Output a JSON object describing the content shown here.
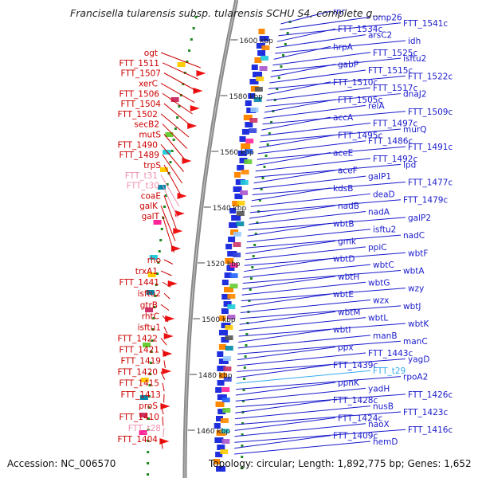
{
  "title": "Francisella tularensis subsp. tularensis SCHU S4, complete g...",
  "footer": {
    "accession": "Accession: NC_006570",
    "summary": "Topology: circular; Length: 1,892,775 bp; Genes: 1,652"
  },
  "colors": {
    "reverse_label": "#cc0000",
    "forward_label": "#1a1acc",
    "rna_reverse": "#f090b0",
    "rna_forward": "#33aaee",
    "backbone": "#8a8a8a",
    "tick": "#1f8a1f"
  },
  "ticks": [
    "1600 kbp",
    "1580 kbp",
    "1560 kbp",
    "1540 kbp",
    "1520 kbp",
    "1500 kbp",
    "1480 kbp",
    "1460 kbp"
  ],
  "left_labels": [
    {
      "text": "ogt",
      "type": "gene"
    },
    {
      "text": "FTT_1511",
      "type": "gene"
    },
    {
      "text": "FTT_1507",
      "type": "gene"
    },
    {
      "text": "xerC",
      "type": "gene"
    },
    {
      "text": "FTT_1506",
      "type": "gene"
    },
    {
      "text": "FTT_1504",
      "type": "gene"
    },
    {
      "text": "FTT_1502",
      "type": "gene"
    },
    {
      "text": "secB2",
      "type": "gene"
    },
    {
      "text": "mutS",
      "type": "gene"
    },
    {
      "text": "FTT_1490",
      "type": "gene"
    },
    {
      "text": "FTT_1489",
      "type": "gene"
    },
    {
      "text": "trpS",
      "type": "gene"
    },
    {
      "text": "FTT_t31",
      "type": "rna"
    },
    {
      "text": "FTT_t30",
      "type": "rna"
    },
    {
      "text": "coaE",
      "type": "gene"
    },
    {
      "text": "galK",
      "type": "gene"
    },
    {
      "text": "galT",
      "type": "gene"
    },
    {
      "text": "rho",
      "type": "gene"
    },
    {
      "text": "trxA1",
      "type": "gene"
    },
    {
      "text": "FTT_1441",
      "type": "gene"
    },
    {
      "text": "isftu2",
      "type": "gene"
    },
    {
      "text": "gtrB",
      "type": "gene"
    },
    {
      "text": "rhtC",
      "type": "gene"
    },
    {
      "text": "isftu1",
      "type": "gene"
    },
    {
      "text": "FTT_1422",
      "type": "gene"
    },
    {
      "text": "FTT_1421",
      "type": "gene"
    },
    {
      "text": "FTT_1419",
      "type": "gene"
    },
    {
      "text": "FTT_1420",
      "type": "gene"
    },
    {
      "text": "FTT_1415",
      "type": "gene"
    },
    {
      "text": "FTT_1413",
      "type": "gene"
    },
    {
      "text": "proS",
      "type": "gene"
    },
    {
      "text": "FTT_1410",
      "type": "gene"
    },
    {
      "text": "FTT_t28",
      "type": "rna"
    },
    {
      "text": "FTT_1404",
      "type": "gene"
    }
  ],
  "right_labels": [
    {
      "text": "rnr",
      "type": "gene"
    },
    {
      "text": "omp26",
      "type": "gene"
    },
    {
      "text": "FTT_1541c",
      "type": "gene"
    },
    {
      "text": "FTT_1534c",
      "type": "gene"
    },
    {
      "text": "arsC2",
      "type": "gene"
    },
    {
      "text": "idh",
      "type": "gene"
    },
    {
      "text": "hrpA",
      "type": "gene"
    },
    {
      "text": "FTT_1525c",
      "type": "gene"
    },
    {
      "text": "isftu2",
      "type": "gene"
    },
    {
      "text": "gabP",
      "type": "gene"
    },
    {
      "text": "FTT_1515c",
      "type": "gene"
    },
    {
      "text": "FTT_1522c",
      "type": "gene"
    },
    {
      "text": "FTT_1510c",
      "type": "gene"
    },
    {
      "text": "FTT_1517c",
      "type": "gene"
    },
    {
      "text": "dnaJ2",
      "type": "gene"
    },
    {
      "text": "FTT_1505c",
      "type": "gene"
    },
    {
      "text": "relA",
      "type": "gene"
    },
    {
      "text": "FTT_1509c",
      "type": "gene"
    },
    {
      "text": "accA",
      "type": "gene"
    },
    {
      "text": "FTT_1497c",
      "type": "gene"
    },
    {
      "text": "murQ",
      "type": "gene"
    },
    {
      "text": "FTT_1495c",
      "type": "gene"
    },
    {
      "text": "FTT_1486c",
      "type": "gene"
    },
    {
      "text": "FTT_1491c",
      "type": "gene"
    },
    {
      "text": "aceE",
      "type": "gene"
    },
    {
      "text": "FTT_1492c",
      "type": "gene"
    },
    {
      "text": "lpd",
      "type": "gene"
    },
    {
      "text": "aceF",
      "type": "gene"
    },
    {
      "text": "galP1",
      "type": "gene"
    },
    {
      "text": "FTT_1477c",
      "type": "gene"
    },
    {
      "text": "kdsB",
      "type": "gene"
    },
    {
      "text": "deaD",
      "type": "gene"
    },
    {
      "text": "FTT_1479c",
      "type": "gene"
    },
    {
      "text": "nadB",
      "type": "gene"
    },
    {
      "text": "nadA",
      "type": "gene"
    },
    {
      "text": "galP2",
      "type": "gene"
    },
    {
      "text": "wbtB",
      "type": "gene"
    },
    {
      "text": "isftu2",
      "type": "gene"
    },
    {
      "text": "nadC",
      "type": "gene"
    },
    {
      "text": "gmk",
      "type": "gene"
    },
    {
      "text": "ppiC",
      "type": "gene"
    },
    {
      "text": "wbtF",
      "type": "gene"
    },
    {
      "text": "wbtD",
      "type": "gene"
    },
    {
      "text": "wbtC",
      "type": "gene"
    },
    {
      "text": "wbtA",
      "type": "gene"
    },
    {
      "text": "wbtH",
      "type": "gene"
    },
    {
      "text": "wbtG",
      "type": "gene"
    },
    {
      "text": "wzy",
      "type": "gene"
    },
    {
      "text": "wbtE",
      "type": "gene"
    },
    {
      "text": "wzx",
      "type": "gene"
    },
    {
      "text": "wbtJ",
      "type": "gene"
    },
    {
      "text": "wbtM",
      "type": "gene"
    },
    {
      "text": "wbtL",
      "type": "gene"
    },
    {
      "text": "wbtK",
      "type": "gene"
    },
    {
      "text": "wbtI",
      "type": "gene"
    },
    {
      "text": "manB",
      "type": "gene"
    },
    {
      "text": "manC",
      "type": "gene"
    },
    {
      "text": "ppx",
      "type": "gene"
    },
    {
      "text": "FTT_1443c",
      "type": "gene"
    },
    {
      "text": "yagD",
      "type": "gene"
    },
    {
      "text": "FTT_1439c",
      "type": "gene"
    },
    {
      "text": "FTT_t29",
      "type": "rna"
    },
    {
      "text": "rpoA2",
      "type": "gene"
    },
    {
      "text": "ppnK",
      "type": "gene"
    },
    {
      "text": "yadH",
      "type": "gene"
    },
    {
      "text": "FTT_1426c",
      "type": "gene"
    },
    {
      "text": "FTT_1428c",
      "type": "gene"
    },
    {
      "text": "nusB",
      "type": "gene"
    },
    {
      "text": "FTT_1423c",
      "type": "gene"
    },
    {
      "text": "FTT_1424c",
      "type": "gene"
    },
    {
      "text": "naoX",
      "type": "gene"
    },
    {
      "text": "FTT_1416c",
      "type": "gene"
    },
    {
      "text": "FTT_1409c",
      "type": "gene"
    },
    {
      "text": "hemD",
      "type": "gene"
    }
  ]
}
